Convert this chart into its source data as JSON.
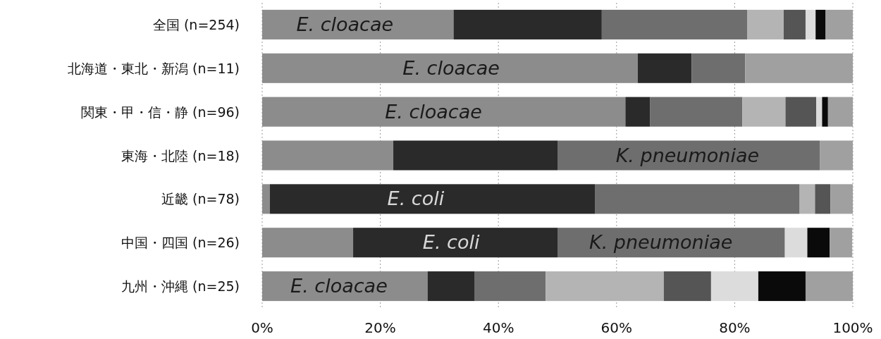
{
  "chart_data": {
    "type": "bar",
    "orientation": "horizontal",
    "stacked": true,
    "categories": [
      "全国 (n=254)",
      "北海道・東北・新潟 (n=11)",
      "関東・甲・信・静 (n=96)",
      "東海・北陸 (n=18)",
      "近畿 (n=78)",
      "中国・四国 (n=26)",
      "九州・沖縄 (n=25)"
    ],
    "series": [
      {
        "color": "#8c8c8c",
        "values": [
          32.4,
          63.6,
          61.5,
          22.2,
          1.3,
          15.4,
          28
        ]
      },
      {
        "color": "#2a2a2a",
        "values": [
          25.1,
          9.1,
          4.2,
          27.8,
          55.1,
          34.6,
          8
        ]
      },
      {
        "color": "#6e6e6e",
        "values": [
          24.6,
          9.1,
          15.6,
          44.4,
          34.6,
          38.5,
          12
        ]
      },
      {
        "color": "#b4b4b4",
        "values": [
          6.2,
          0,
          7.3,
          0,
          2.6,
          0,
          20
        ]
      },
      {
        "color": "#555555",
        "values": [
          3.7,
          0,
          5.2,
          0,
          2.6,
          0,
          8
        ]
      },
      {
        "color": "#dcdcdc",
        "values": [
          1.7,
          0,
          1.0,
          0,
          0,
          3.8,
          8
        ]
      },
      {
        "color": "#0a0a0a",
        "values": [
          1.7,
          0,
          1.0,
          0,
          0,
          3.8,
          8
        ]
      },
      {
        "color": "#a0a0a0",
        "values": [
          4.6,
          18.2,
          4.2,
          5.6,
          3.8,
          3.8,
          8
        ]
      }
    ],
    "xlim": [
      0,
      100
    ],
    "xticks": [
      {
        "value": 0,
        "label": "0%"
      },
      {
        "value": 20,
        "label": "20%"
      },
      {
        "value": 40,
        "label": "40%"
      },
      {
        "value": 60,
        "label": "60%"
      },
      {
        "value": 80,
        "label": "80%"
      },
      {
        "value": 100,
        "label": "100%"
      }
    ],
    "grid": "x",
    "annotations": [
      {
        "text": "E. cloacae",
        "x": 14,
        "y": "全国 (n=254)"
      },
      {
        "text": "E. cloacae",
        "x": 32,
        "y": "北海道・東北・新潟 (n=11)"
      },
      {
        "text": "E. cloacae",
        "x": 29,
        "y": "関東・甲・信・静 (n=96)"
      },
      {
        "text": "K. pneumoniae",
        "x": 72,
        "y": "東海・北陸 (n=18)"
      },
      {
        "text": "E. coli",
        "x": 26,
        "y": "近畿 (n=78)"
      },
      {
        "text": "E. coli",
        "x": 32,
        "y": "中国・四国 (n=26)"
      },
      {
        "text": "K. pneumoniae",
        "x": 67.5,
        "y": "中国・四国 (n=26)"
      },
      {
        "text": "E. cloacae",
        "x": 13,
        "y": "九州・沖縄 (n=25)"
      }
    ]
  }
}
